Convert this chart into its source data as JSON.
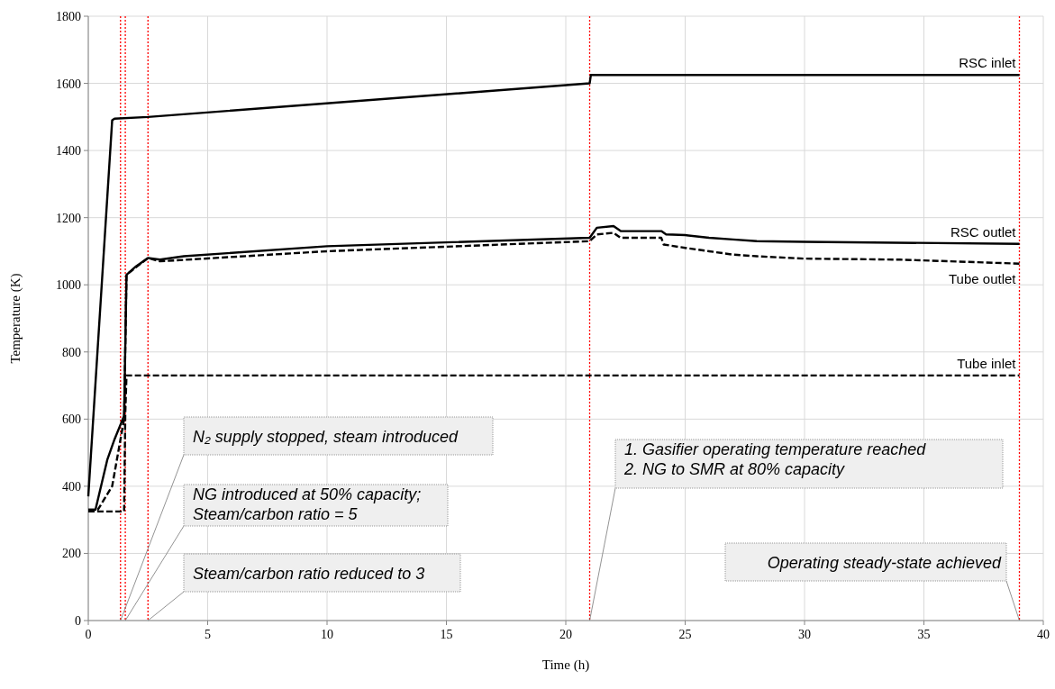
{
  "chart_data": {
    "type": "line",
    "xlabel": "Time (h)",
    "ylabel": "Temperature (K)",
    "xlim": [
      0,
      40
    ],
    "xticks": [
      0,
      5,
      10,
      15,
      20,
      25,
      30,
      35,
      40
    ],
    "ylim": [
      0,
      1800
    ],
    "yticks": [
      0,
      200,
      400,
      600,
      800,
      1000,
      1200,
      1400,
      1600,
      1800
    ],
    "grid": true,
    "series": [
      {
        "name": "RSC inlet",
        "color": "#000000",
        "line_style": "solid",
        "x": [
          0,
          1.0,
          1.1,
          2.5,
          21,
          21.05,
          39
        ],
        "values": [
          370,
          1490,
          1495,
          1500,
          1600,
          1625,
          1625
        ]
      },
      {
        "name": "RSC outlet",
        "color": "#000000",
        "line_style": "solid",
        "x": [
          0,
          0.3,
          0.8,
          1.1,
          1.5,
          1.6,
          2,
          2.5,
          3,
          4,
          10,
          21,
          21.3,
          22,
          22.3,
          24,
          24.2,
          25,
          26,
          27,
          28,
          30,
          39
        ],
        "values": [
          330,
          330,
          480,
          540,
          610,
          1030,
          1055,
          1080,
          1075,
          1085,
          1115,
          1140,
          1170,
          1175,
          1160,
          1160,
          1150,
          1148,
          1140,
          1135,
          1130,
          1128,
          1122
        ]
      },
      {
        "name": "Tube outlet",
        "color": "#000000",
        "line_style": "dashed",
        "x": [
          0,
          0.4,
          1,
          1.5,
          1.6,
          2.5,
          3,
          10,
          21,
          21.3,
          22,
          22.3,
          24,
          24.1,
          25,
          26,
          27,
          28,
          30,
          34,
          39
        ],
        "values": [
          330,
          330,
          400,
          600,
          1030,
          1080,
          1070,
          1100,
          1130,
          1150,
          1155,
          1140,
          1140,
          1120,
          1110,
          1100,
          1090,
          1085,
          1078,
          1075,
          1063
        ]
      },
      {
        "name": "Tube inlet",
        "color": "#000000",
        "line_style": "dashed",
        "x": [
          0,
          1.5,
          1.55,
          1.6,
          39
        ],
        "values": [
          325,
          325,
          620,
          730,
          730
        ]
      }
    ],
    "ref_lines": [
      {
        "axis": "x",
        "value": 1.35,
        "color": "#ff0000",
        "line_style": "dotted"
      },
      {
        "axis": "x",
        "value": 1.55,
        "color": "#ff0000",
        "line_style": "dotted"
      },
      {
        "axis": "x",
        "value": 2.5,
        "color": "#ff0000",
        "line_style": "dotted"
      },
      {
        "axis": "x",
        "value": 21,
        "color": "#ff0000",
        "line_style": "dotted"
      },
      {
        "axis": "x",
        "value": 39,
        "color": "#ff0000",
        "line_style": "dotted"
      }
    ],
    "annotations": [
      {
        "text": "N₂ supply stopped, steam introduced",
        "x": 1.35,
        "y": 0
      },
      {
        "text": "NG introduced at 50% capacity;\nSteam/carbon ratio = 5",
        "x": 1.55,
        "y": 0
      },
      {
        "text": "Steam/carbon ratio reduced to 3",
        "x": 2.5,
        "y": 0
      },
      {
        "text": "1. Gasifier operating temperature reached\n2. NG to SMR at 80% capacity",
        "x": 21,
        "y": 0
      },
      {
        "text": "Operating steady-state achieved",
        "x": 39,
        "y": 0
      }
    ]
  }
}
